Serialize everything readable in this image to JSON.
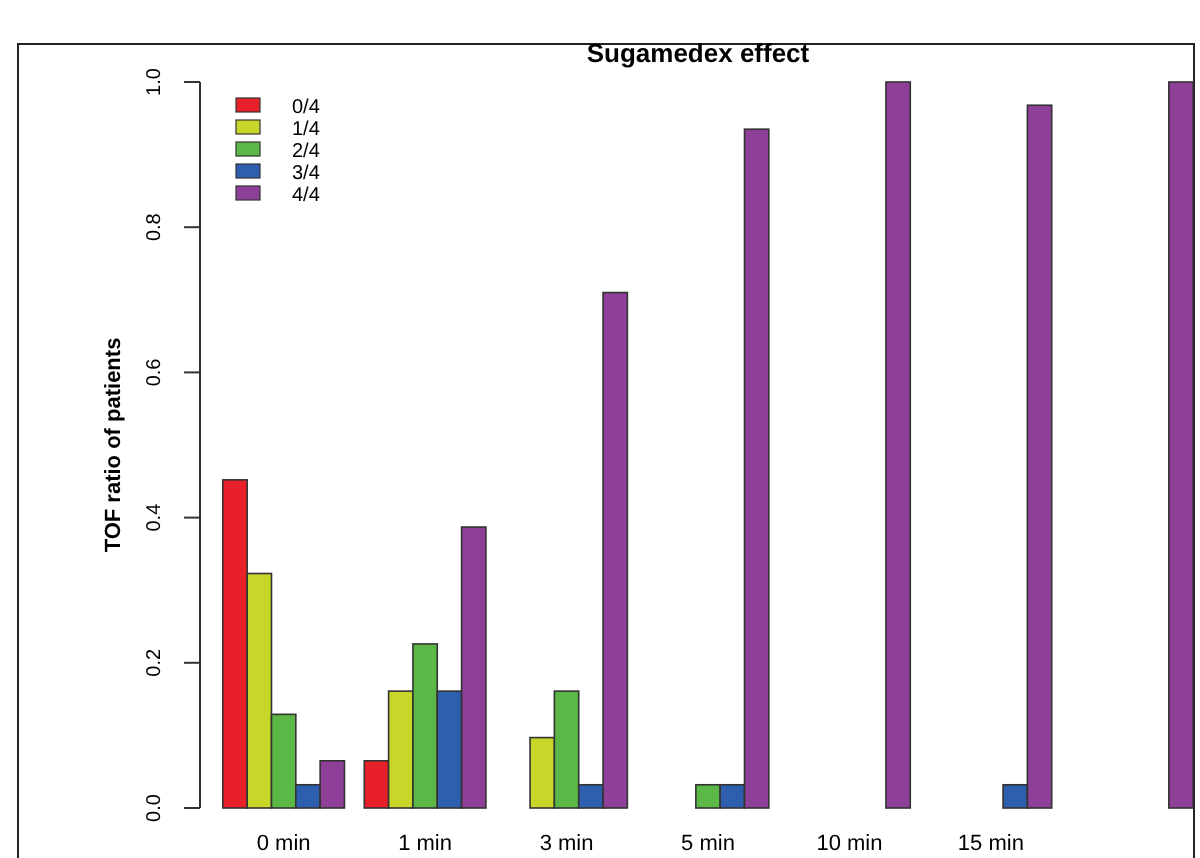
{
  "chart_data": {
    "type": "bar",
    "title": "Sugamedex effect",
    "ylabel": "TOF ratio of patients",
    "categories": [
      "0 min",
      "1 min",
      "3 min",
      "5 min",
      "10 min",
      "15 min",
      null
    ],
    "series": [
      {
        "name": "0/4",
        "color": "#e8202a",
        "values": [
          0.452,
          0.065,
          0,
          0,
          0,
          0,
          0
        ]
      },
      {
        "name": "1/4",
        "color": "#c8d62a",
        "values": [
          0.323,
          0.161,
          0.097,
          0,
          0,
          0,
          0
        ]
      },
      {
        "name": "2/4",
        "color": "#5cb846",
        "values": [
          0.129,
          0.226,
          0.161,
          0.032,
          0,
          0,
          0
        ]
      },
      {
        "name": "3/4",
        "color": "#2e5fae",
        "values": [
          0.032,
          0.161,
          0.032,
          0.032,
          0,
          0.032,
          0
        ]
      },
      {
        "name": "4/4",
        "color": "#8e3f98",
        "values": [
          0.065,
          0.387,
          0.71,
          0.935,
          1,
          0.968,
          1
        ]
      }
    ],
    "ylim": [
      0,
      1
    ],
    "yticks": [
      {
        "value": 0,
        "label": "0.0"
      },
      {
        "value": 0.2,
        "label": "0.2"
      },
      {
        "value": 0.4,
        "label": "0.4"
      },
      {
        "value": 0.6,
        "label": "0.6"
      },
      {
        "value": 0.8,
        "label": "0.8"
      },
      {
        "value": 1,
        "label": "1.0"
      }
    ],
    "legend": "top left",
    "grid": false
  }
}
